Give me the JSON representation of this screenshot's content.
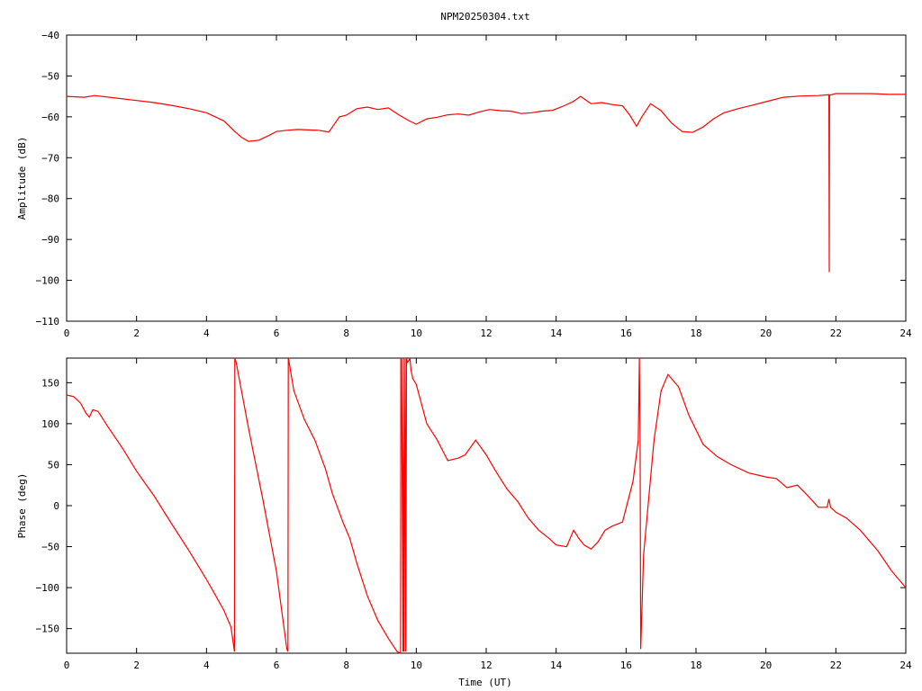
{
  "title": "NPM20250304.txt",
  "colors": {
    "series": "#ff0000",
    "axes": "#000000",
    "background": "#ffffff"
  },
  "chart_data": [
    {
      "type": "line",
      "ylabel": "Amplitude (dB)",
      "xlabel": "",
      "xlim": [
        0,
        24
      ],
      "ylim": [
        -110,
        -40
      ],
      "xticks": [
        0,
        2,
        4,
        6,
        8,
        10,
        12,
        14,
        16,
        18,
        20,
        22,
        24
      ],
      "yticks": [
        -110,
        -100,
        -90,
        -80,
        -70,
        -60,
        -50,
        -40
      ],
      "grid": false,
      "series": [
        {
          "x": [
            0,
            0.5,
            0.8,
            1.5,
            2,
            2.5,
            3,
            3.5,
            4,
            4.5,
            4.8,
            5,
            5.2,
            5.5,
            5.8,
            6,
            6.3,
            6.6,
            6.9,
            7.2,
            7.5,
            7.6,
            7.8,
            8.0,
            8.3,
            8.6,
            8.9,
            9.2,
            9.5,
            9.8,
            10.0,
            10.3,
            10.6,
            10.9,
            11.2,
            11.5,
            11.8,
            12.1,
            12.4,
            12.7,
            13.0,
            13.3,
            13.6,
            13.9,
            14.2,
            14.5,
            14.7,
            15.0,
            15.3,
            15.6,
            15.9,
            16.1,
            16.3,
            16.45,
            16.7,
            17.0,
            17.3,
            17.6,
            17.9,
            18.2,
            18.5,
            18.8,
            19.2,
            19.6,
            20.0,
            20.5,
            21.0,
            21.5,
            21.8,
            21.81,
            21.82,
            22.0,
            22.5,
            23.0,
            23.5,
            24
          ],
          "y": [
            -55,
            -55.2,
            -54.8,
            -55.5,
            -56,
            -56.5,
            -57.2,
            -58,
            -59,
            -61,
            -63.5,
            -65,
            -66,
            -65.7,
            -64.5,
            -63.6,
            -63.3,
            -63.1,
            -63.2,
            -63.3,
            -63.7,
            -62.5,
            -60,
            -59.6,
            -58,
            -57.6,
            -58.2,
            -57.8,
            -59.5,
            -61,
            -61.8,
            -60.5,
            -60.1,
            -59.5,
            -59.3,
            -59.6,
            -58.8,
            -58.2,
            -58.5,
            -58.6,
            -59.2,
            -59,
            -58.6,
            -58.4,
            -57.4,
            -56.2,
            -55,
            -56.8,
            -56.5,
            -57,
            -57.3,
            -59.5,
            -62.3,
            -60,
            -56.8,
            -58.5,
            -61.5,
            -63.6,
            -63.8,
            -62.5,
            -60.5,
            -59,
            -58,
            -57.2,
            -56.3,
            -55.2,
            -54.9,
            -54.8,
            -54.6,
            -98,
            -54.7,
            -54.3,
            -54.3,
            -54.3,
            -54.5,
            -54.5
          ]
        }
      ]
    },
    {
      "type": "line",
      "ylabel": "Phase (deg)",
      "xlabel": "Time (UT)",
      "xlim": [
        0,
        24
      ],
      "ylim": [
        -180,
        180
      ],
      "xticks": [
        0,
        2,
        4,
        6,
        8,
        10,
        12,
        14,
        16,
        18,
        20,
        22,
        24
      ],
      "yticks": [
        -150,
        -100,
        -50,
        0,
        50,
        100,
        150
      ],
      "grid": false,
      "series": [
        {
          "x": [
            0,
            0.2,
            0.4,
            0.55,
            0.65,
            0.75,
            0.9,
            1.2,
            1.6,
            2.0,
            2.5,
            3.0,
            3.5,
            4.0,
            4.2,
            4.5,
            4.7,
            4.8,
            4.81,
            4.85,
            5.2,
            5.6,
            6.0,
            6.3,
            6.33,
            6.34,
            6.35,
            6.5,
            6.8,
            7.1,
            7.4,
            7.6,
            7.9,
            8.1,
            8.3,
            8.6,
            8.9,
            9.2,
            9.45,
            9.55,
            9.56,
            9.58,
            9.62,
            9.63,
            9.65,
            9.68,
            9.7,
            9.72,
            9.75,
            9.8,
            9.82,
            9.85,
            9.9,
            10.0,
            10.3,
            10.6,
            10.9,
            11.2,
            11.4,
            11.7,
            12.0,
            12.3,
            12.6,
            12.9,
            13.2,
            13.5,
            13.8,
            14.0,
            14.3,
            14.5,
            14.65,
            14.8,
            15.0,
            15.2,
            15.4,
            15.6,
            15.9,
            16.2,
            16.35,
            16.38,
            16.4,
            16.42,
            16.5,
            16.8,
            17.0,
            17.2,
            17.5,
            17.8,
            18.2,
            18.6,
            19.0,
            19.5,
            20.0,
            20.3,
            20.6,
            20.9,
            21.2,
            21.5,
            21.75,
            21.8,
            21.85,
            22.0,
            22.3,
            22.7,
            23.2,
            23.6,
            24.0
          ],
          "y": [
            135,
            133,
            125,
            113,
            108,
            117,
            115,
            95,
            70,
            42,
            12,
            -22,
            -55,
            -90,
            -105,
            -128,
            -148,
            -178,
            180,
            175,
            95,
            10,
            -80,
            -175,
            -178,
            180,
            178,
            140,
            105,
            80,
            45,
            15,
            -20,
            -40,
            -70,
            -110,
            -140,
            -162,
            -178,
            -180,
            180,
            178,
            -178,
            180,
            -178,
            179,
            -178,
            180,
            175,
            178,
            180,
            165,
            155,
            148,
            100,
            80,
            55,
            58,
            62,
            80,
            62,
            40,
            20,
            5,
            -15,
            -30,
            -40,
            -48,
            -50,
            -30,
            -40,
            -48,
            -53,
            -44,
            -30,
            -25,
            -20,
            30,
            80,
            180,
            90,
            -175,
            -60,
            80,
            140,
            160,
            145,
            110,
            75,
            60,
            50,
            40,
            35,
            33,
            22,
            25,
            12,
            -2,
            -2,
            8,
            -2,
            -8,
            -15,
            -30,
            -55,
            -80,
            -100
          ]
        }
      ]
    }
  ]
}
